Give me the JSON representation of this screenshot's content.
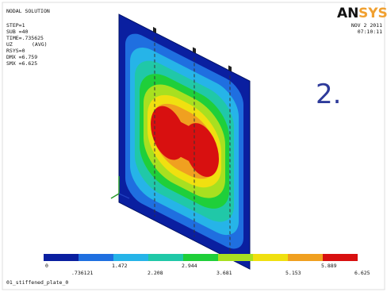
{
  "info": {
    "title": "NODAL SOLUTION",
    "lines": [
      "STEP=1",
      "SUB =40",
      "TIME=.735625",
      "UZ",
      "(AVG)",
      "RSYS=0",
      "DMX =6.759",
      "SMX =6.625"
    ]
  },
  "logo": {
    "left": "AN",
    "right": "SYS"
  },
  "date": "NOV  2 2011",
  "time": "07:10:11",
  "slide_number": "2.",
  "legend": {
    "upper_labels": [
      "0",
      "1.472",
      "2.944",
      "5.889"
    ],
    "lower_labels": [
      ".736121",
      "2.208",
      "3.681",
      "5.153",
      "6.625"
    ]
  },
  "footer": "01_stiffened_plate_0"
}
